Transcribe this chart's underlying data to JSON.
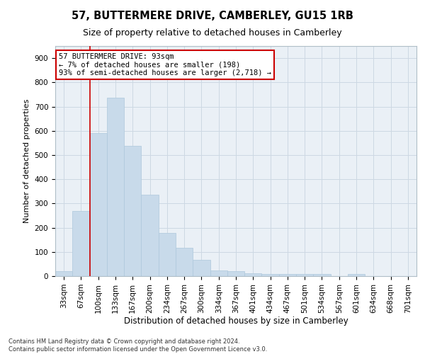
{
  "title": "57, BUTTERMERE DRIVE, CAMBERLEY, GU15 1RB",
  "subtitle": "Size of property relative to detached houses in Camberley",
  "xlabel": "Distribution of detached houses by size in Camberley",
  "ylabel": "Number of detached properties",
  "footer_line1": "Contains HM Land Registry data © Crown copyright and database right 2024.",
  "footer_line2": "Contains public sector information licensed under the Open Government Licence v3.0.",
  "bar_labels": [
    "33sqm",
    "67sqm",
    "100sqm",
    "133sqm",
    "167sqm",
    "200sqm",
    "234sqm",
    "267sqm",
    "300sqm",
    "334sqm",
    "367sqm",
    "401sqm",
    "434sqm",
    "467sqm",
    "501sqm",
    "534sqm",
    "567sqm",
    "601sqm",
    "634sqm",
    "668sqm",
    "701sqm"
  ],
  "bar_values": [
    20,
    270,
    590,
    737,
    537,
    337,
    178,
    118,
    68,
    22,
    20,
    12,
    8,
    8,
    8,
    8,
    0,
    8,
    0,
    0,
    0
  ],
  "bar_color": "#c8daea",
  "bar_edge_color": "#aec8dc",
  "property_line_color": "#cc0000",
  "property_line_x": 1.5,
  "annotation_title": "57 BUTTERMERE DRIVE: 93sqm",
  "annotation_line2": "← 7% of detached houses are smaller (198)",
  "annotation_line3": "93% of semi-detached houses are larger (2,718) →",
  "annotation_box_facecolor": "#ffffff",
  "annotation_box_edgecolor": "#cc0000",
  "grid_color": "#cdd8e3",
  "background_color": "#eaf0f6",
  "ylim": [
    0,
    950
  ],
  "yticks": [
    0,
    100,
    200,
    300,
    400,
    500,
    600,
    700,
    800,
    900
  ],
  "title_fontsize": 10.5,
  "subtitle_fontsize": 9,
  "ylabel_fontsize": 8,
  "xlabel_fontsize": 8.5,
  "tick_fontsize": 7.5,
  "annot_fontsize": 7.5,
  "footer_fontsize": 6
}
